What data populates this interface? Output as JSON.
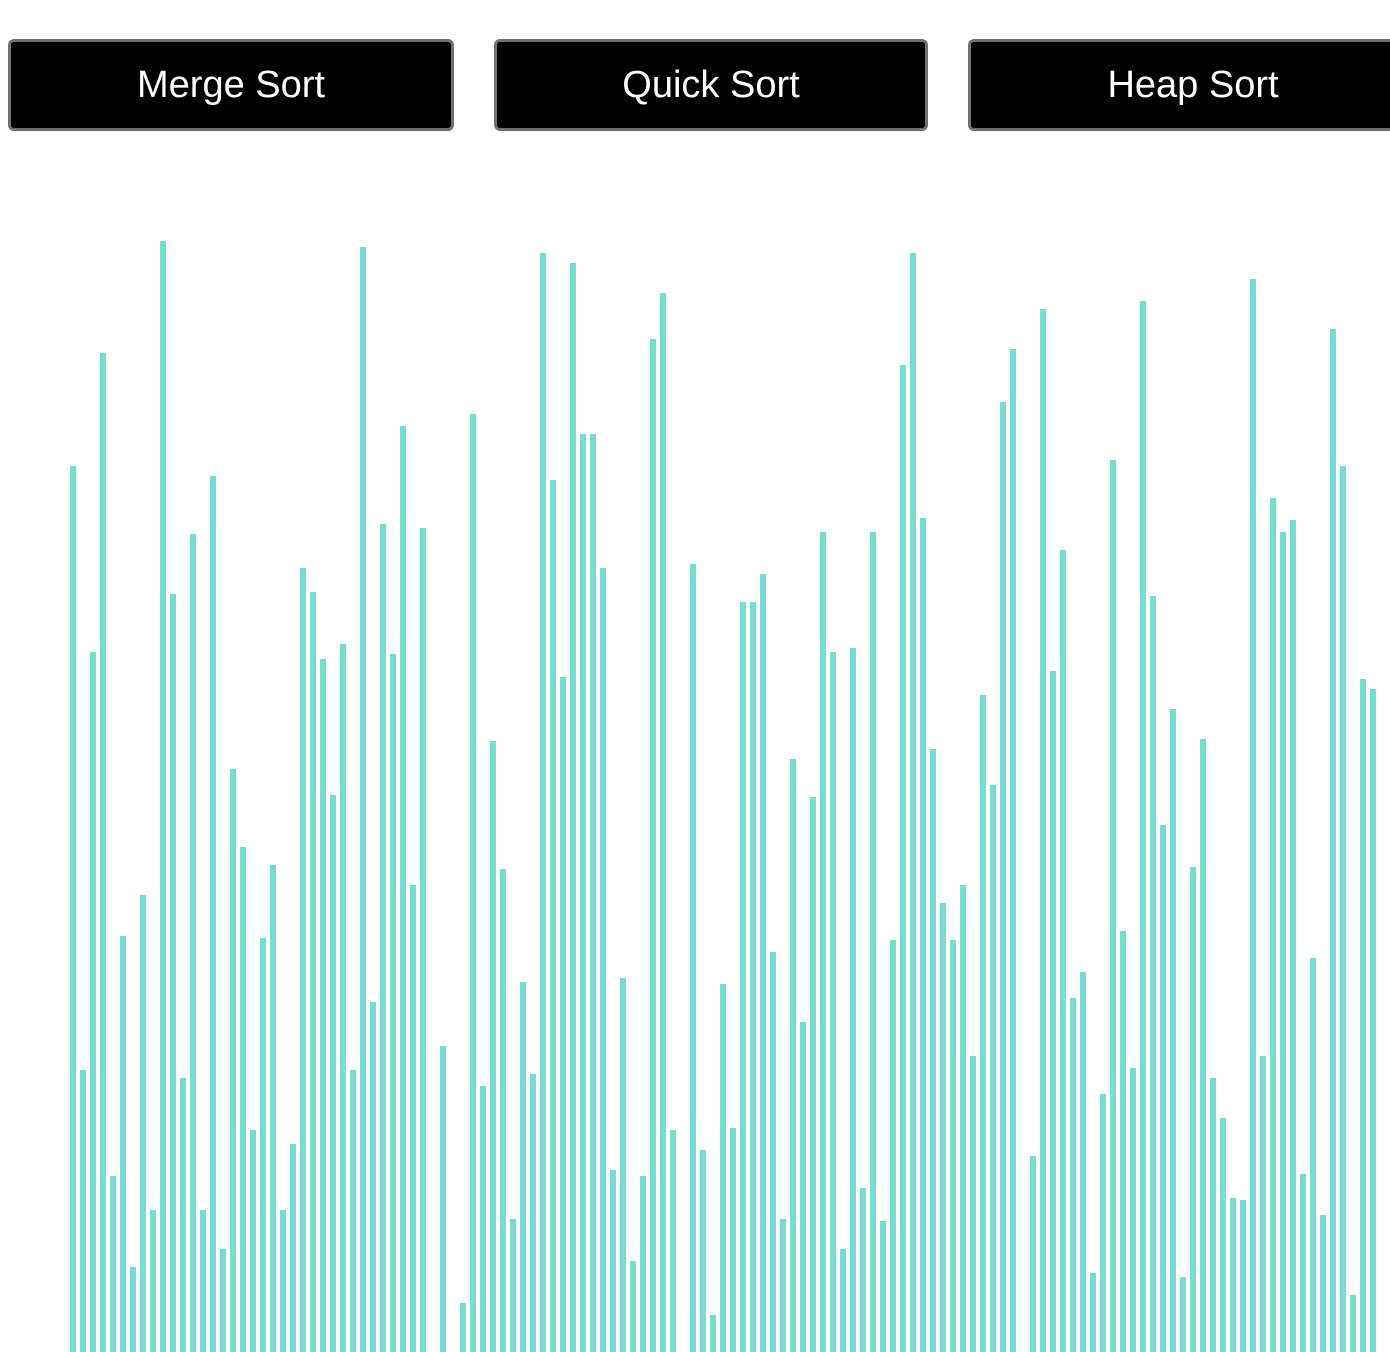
{
  "toolbar": {
    "buttons": [
      {
        "id": "merge",
        "label": "Merge Sort"
      },
      {
        "id": "quick",
        "label": "Quick Sort"
      },
      {
        "id": "heap",
        "label": "Heap Sort"
      }
    ]
  },
  "colors": {
    "bar": "#76dcd0",
    "button_bg": "#000000",
    "button_text": "#ffffff",
    "button_border": "#707070"
  },
  "array_visualization": {
    "max_value": 1120,
    "values": [
      889,
      283,
      703,
      1003,
      177,
      417,
      85,
      459,
      143,
      1115,
      761,
      275,
      821,
      143,
      879,
      103,
      585,
      507,
      223,
      415,
      489,
      143,
      209,
      787,
      763,
      695,
      559,
      711,
      283,
      1109,
      351,
      831,
      701,
      929,
      469,
      827,
      0,
      307,
      0,
      49,
      941,
      267,
      613,
      485,
      133,
      371,
      279,
      1103,
      875,
      677,
      1093,
      921,
      921,
      787,
      183,
      375,
      91,
      177,
      1017,
      1063,
      223,
      0,
      791,
      203,
      37,
      369,
      225,
      753,
      753,
      781,
      401,
      133,
      595,
      331,
      557,
      823,
      703,
      103,
      707,
      165,
      823,
      131,
      413,
      991,
      1103,
      837,
      605,
      451,
      413,
      469,
      297,
      659,
      569,
      953,
      1007,
      0,
      197,
      1047,
      683,
      805,
      355,
      381,
      79,
      259,
      895,
      423,
      285,
      1055,
      759,
      529,
      645,
      75,
      487,
      615,
      275,
      235,
      155,
      153,
      1077,
      297,
      857,
      823,
      835,
      179,
      395,
      137,
      1027,
      889,
      57,
      675,
      665
    ]
  }
}
